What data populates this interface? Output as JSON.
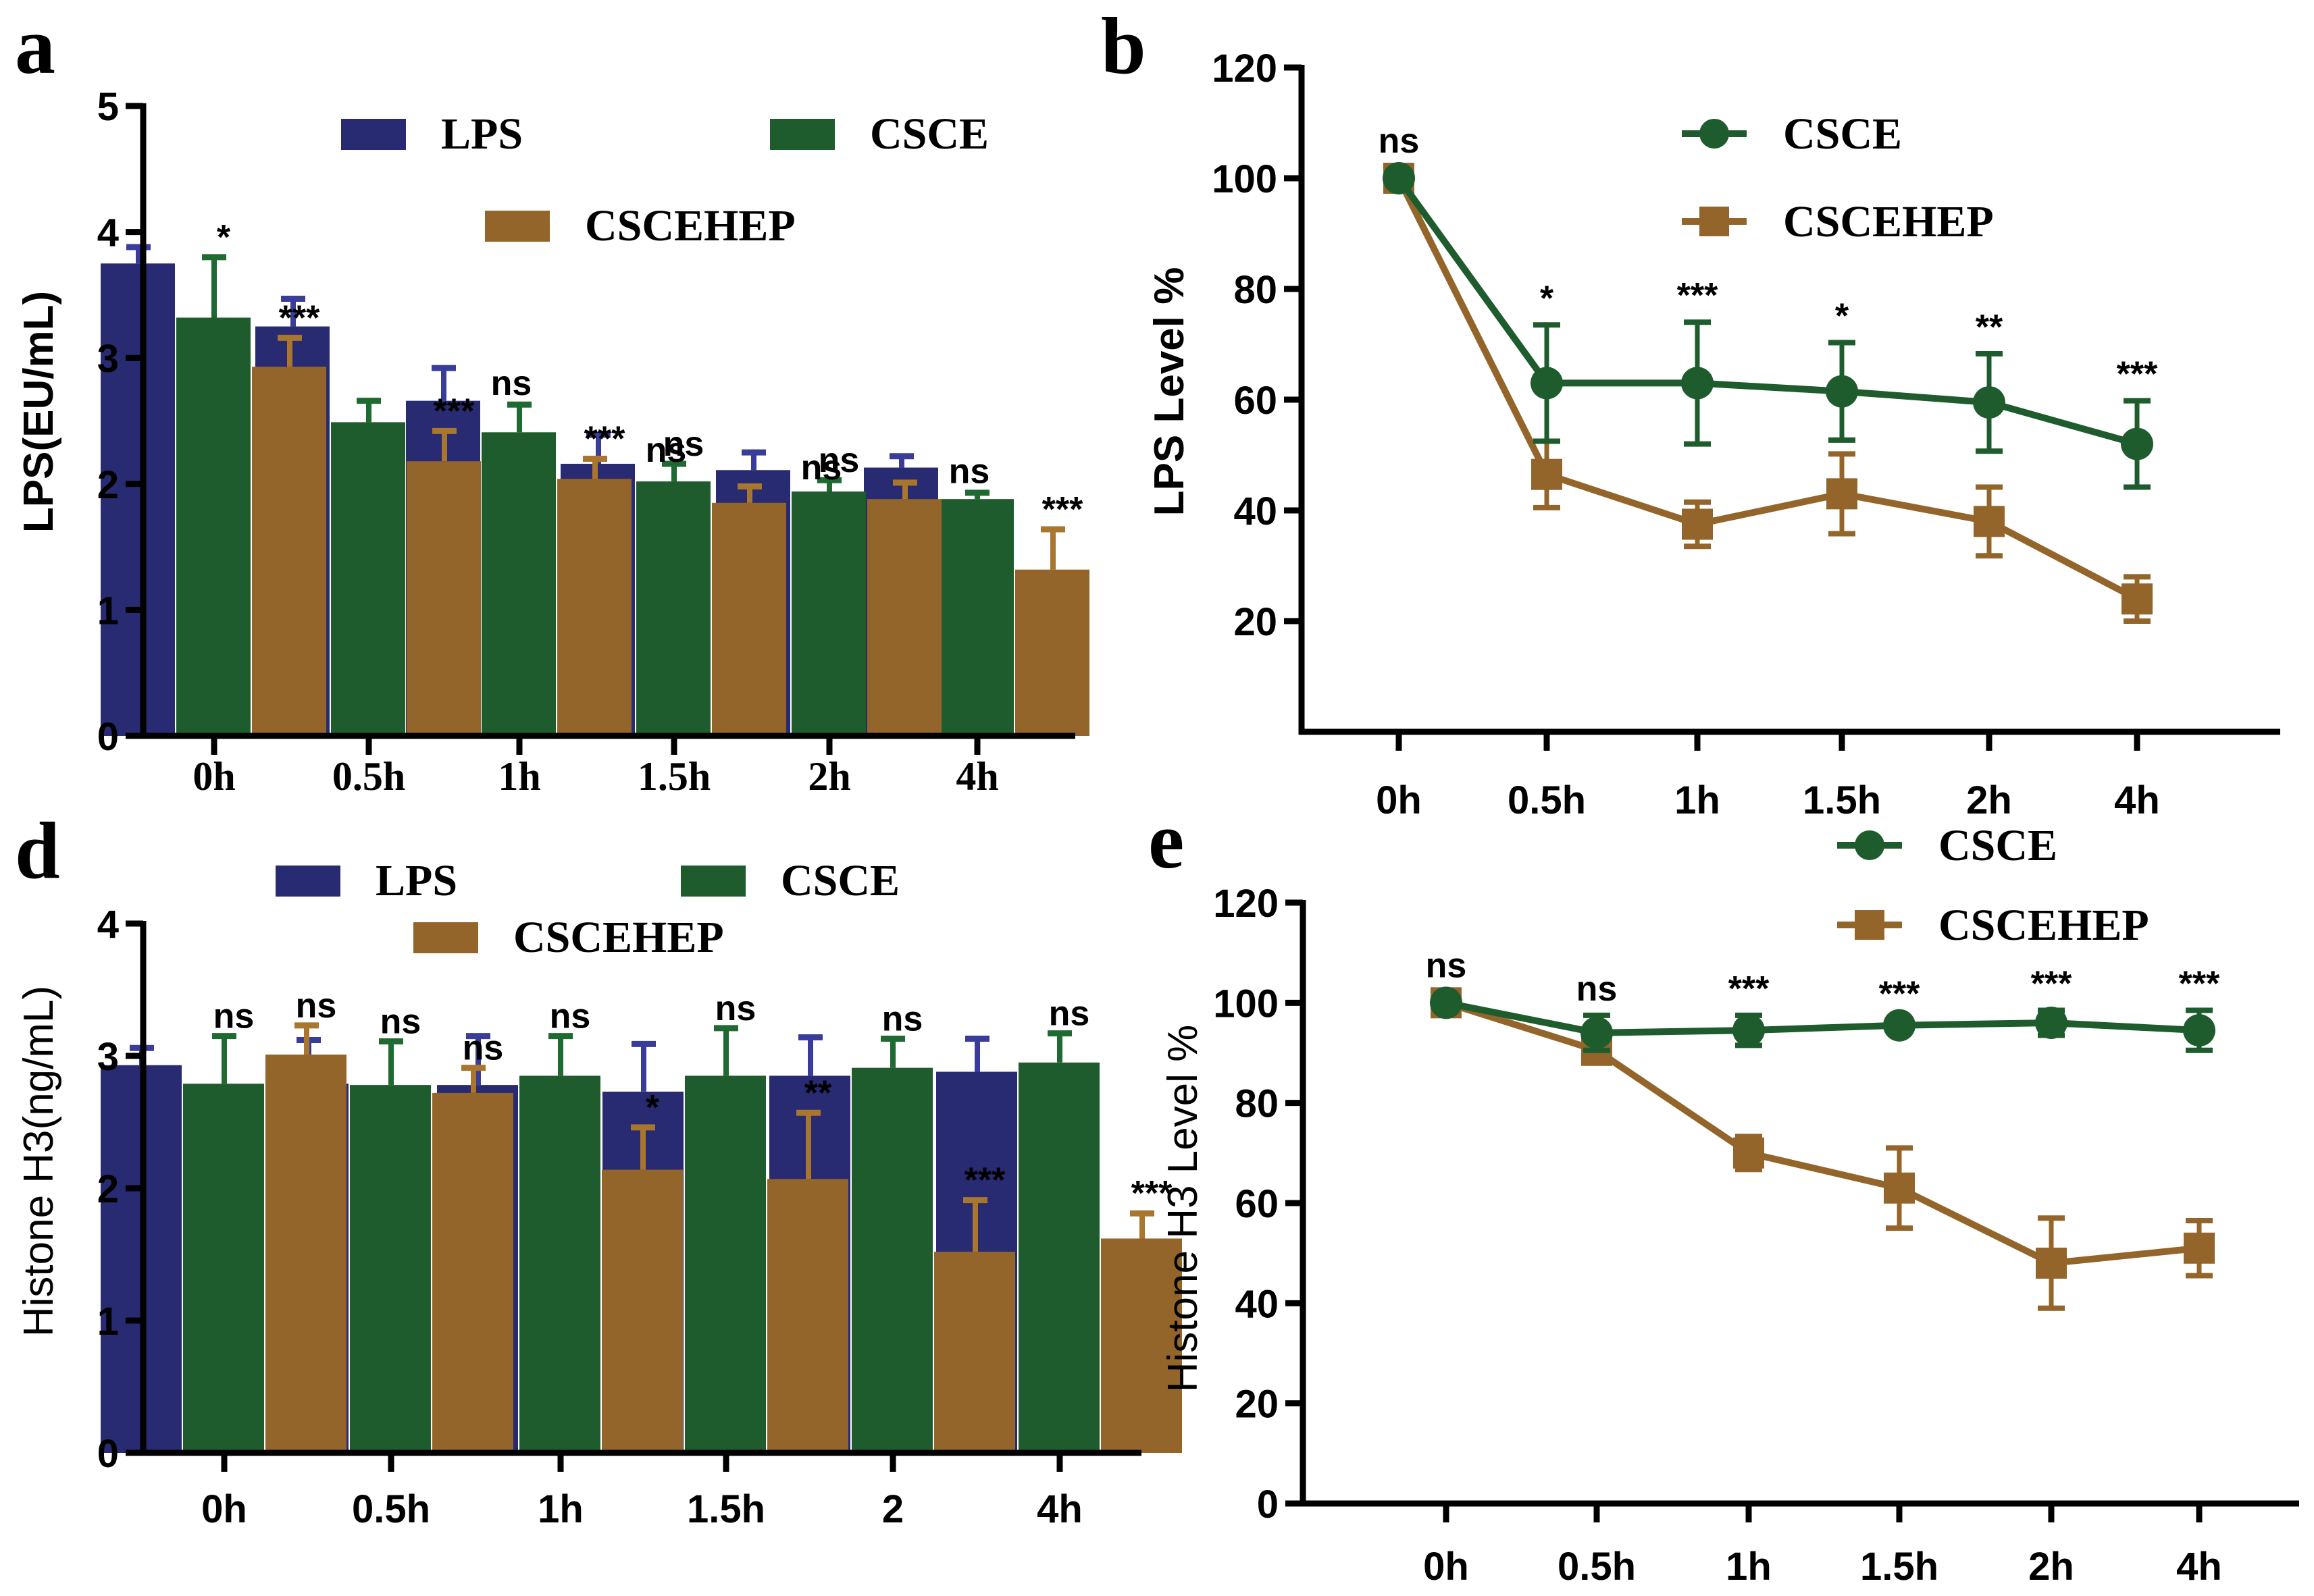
{
  "colors": {
    "LPS": "#282a72",
    "CSCE": "#1e5c2e",
    "CSCEHEP": "#94652a",
    "CSCE_err": "#1e6a30",
    "LPS_err": "#3a3c9a",
    "CSCEHEP_err": "#a8762f"
  },
  "chart_data": [
    {
      "id": "a",
      "panel_label": "a",
      "type": "bar",
      "title": "",
      "xlabel": "",
      "ylabel": "LPS(EU/mL)",
      "ylim": [
        0,
        5
      ],
      "yticks": [
        "0",
        "1",
        "2",
        "3",
        "4",
        "5"
      ],
      "categories": [
        "0h",
        "0.5h",
        "1h",
        "1.5h",
        "2h",
        "4h"
      ],
      "legend": [
        "LPS",
        "CSCE",
        "CSCEHEP"
      ],
      "legend_position": "top",
      "series": [
        {
          "name": "LPS",
          "values": [
            3.75,
            3.25,
            2.66,
            2.16,
            2.11,
            2.13
          ],
          "errors": [
            0.13,
            0.22,
            0.26,
            0.23,
            0.14,
            0.09
          ]
        },
        {
          "name": "CSCE",
          "values": [
            3.32,
            2.49,
            2.41,
            2.02,
            1.94,
            1.88
          ],
          "errors": [
            0.48,
            0.17,
            0.22,
            0.14,
            0.09,
            0.05
          ]
        },
        {
          "name": "CSCEHEP",
          "values": [
            2.93,
            2.18,
            2.04,
            1.85,
            1.88,
            1.32
          ],
          "errors": [
            0.23,
            0.24,
            0.16,
            0.13,
            0.13,
            0.32
          ]
        }
      ],
      "annotations": [
        {
          "series": "CSCE",
          "category": "0h",
          "text": "*"
        },
        {
          "series": "CSCEHEP",
          "category": "0h",
          "text": "***"
        },
        {
          "series": "CSCEHEP",
          "category": "0.5h",
          "text": "***"
        },
        {
          "series": "LPS",
          "category": "1h",
          "text": "ns"
        },
        {
          "series": "CSCEHEP",
          "category": "1h",
          "text": "***"
        },
        {
          "series": "LPS",
          "category": "1.5h",
          "text": "ns"
        },
        {
          "series": "CSCE",
          "category": "1.5h",
          "text": "ns"
        },
        {
          "series": "LPS",
          "category": "2h",
          "text": "ns"
        },
        {
          "series": "CSCE",
          "category": "2h",
          "text": "ns"
        },
        {
          "series": "LPS",
          "category": "4h",
          "text": "ns"
        },
        {
          "series": "CSCEHEP",
          "category": "4h",
          "text": "***"
        }
      ]
    },
    {
      "id": "b",
      "panel_label": "b",
      "type": "line",
      "title": "",
      "xlabel": "",
      "ylabel": "LPS Level %",
      "ylim": [
        0,
        120
      ],
      "yticks": [
        "20",
        "40",
        "60",
        "80",
        "100",
        "120"
      ],
      "x": [
        "0h",
        "0.5h",
        "1h",
        "1.5h",
        "2h",
        "4h"
      ],
      "legend": [
        "CSCE",
        "CSCEHEP"
      ],
      "legend_position": "top-right",
      "series": [
        {
          "name": "CSCE",
          "marker": "circle",
          "values": [
            100,
            63,
            63,
            61.5,
            59.5,
            52
          ],
          "errors": [
            0,
            10.5,
            11,
            8.8,
            8.8,
            7.8
          ]
        },
        {
          "name": "CSCEHEP",
          "marker": "square",
          "values": [
            100,
            46.5,
            37.5,
            43,
            38,
            24
          ],
          "errors": [
            0,
            6,
            4,
            7.2,
            6.2,
            4
          ]
        }
      ],
      "annotations": [
        {
          "category": "0h",
          "text": "ns"
        },
        {
          "category": "0.5h",
          "text": "*"
        },
        {
          "category": "1h",
          "text": "***"
        },
        {
          "category": "1.5h",
          "text": "*"
        },
        {
          "category": "2h",
          "text": "**"
        },
        {
          "category": "4h",
          "text": "***"
        }
      ]
    },
    {
      "id": "d",
      "panel_label": "d",
      "type": "bar",
      "title": "",
      "xlabel": "",
      "ylabel": "Histone H3(ng/mL)",
      "ylim": [
        0,
        4
      ],
      "yticks": [
        "0",
        "1",
        "2",
        "3",
        "4"
      ],
      "categories": [
        "0h",
        "0.5h",
        "1h",
        "1.5h",
        "2",
        "4h"
      ],
      "legend": [
        "LPS",
        "CSCE",
        "CSCEHEP"
      ],
      "legend_position": "top",
      "series": [
        {
          "name": "LPS",
          "values": [
            2.93,
            2.79,
            2.78,
            2.73,
            2.85,
            2.88
          ],
          "errors": [
            0.13,
            0.33,
            0.37,
            0.36,
            0.29,
            0.25
          ]
        },
        {
          "name": "CSCE",
          "values": [
            2.79,
            2.78,
            2.85,
            2.85,
            2.91,
            2.95
          ],
          "errors": [
            0.36,
            0.33,
            0.3,
            0.36,
            0.22,
            0.22
          ]
        },
        {
          "name": "CSCEHEP",
          "values": [
            3.01,
            2.72,
            2.14,
            2.07,
            1.52,
            1.62
          ],
          "errors": [
            0.22,
            0.19,
            0.32,
            0.5,
            0.39,
            0.19
          ]
        }
      ],
      "annotations": [
        {
          "series": "CSCE",
          "category": "0h",
          "text": "ns"
        },
        {
          "series": "CSCEHEP",
          "category": "0h",
          "text": "ns"
        },
        {
          "series": "CSCE",
          "category": "0.5h",
          "text": "ns"
        },
        {
          "series": "CSCEHEP",
          "category": "0.5h",
          "text": "ns"
        },
        {
          "series": "CSCE",
          "category": "1h",
          "text": "ns"
        },
        {
          "series": "CSCEHEP",
          "category": "1h",
          "text": "*"
        },
        {
          "series": "CSCE",
          "category": "1.5h",
          "text": "ns"
        },
        {
          "series": "CSCEHEP",
          "category": "1.5h",
          "text": "**"
        },
        {
          "series": "CSCE",
          "category": "2",
          "text": "ns"
        },
        {
          "series": "CSCEHEP",
          "category": "2",
          "text": "***"
        },
        {
          "series": "CSCE",
          "category": "4h",
          "text": "ns"
        },
        {
          "series": "CSCEHEP",
          "category": "4h",
          "text": "***"
        }
      ]
    },
    {
      "id": "e",
      "panel_label": "e",
      "type": "line",
      "title": "",
      "xlabel": "",
      "ylabel": "Histone H3 Level %",
      "ylim": [
        0,
        120
      ],
      "yticks": [
        "0",
        "20",
        "40",
        "60",
        "80",
        "100",
        "120"
      ],
      "x": [
        "0h",
        "0.5h",
        "1h",
        "1.5h",
        "2h",
        "4h"
      ],
      "legend": [
        "CSCE",
        "CSCEHEP"
      ],
      "legend_position": "top-right",
      "series": [
        {
          "name": "CSCE",
          "marker": "circle",
          "values": [
            100,
            94,
            94.5,
            95.5,
            96,
            94.5
          ],
          "errors": [
            0,
            3.5,
            3,
            1,
            2.5,
            4
          ]
        },
        {
          "name": "CSCEHEP",
          "marker": "square",
          "values": [
            100,
            90.5,
            70,
            63,
            48,
            51
          ],
          "errors": [
            0,
            2,
            3.3,
            8,
            9,
            5.5
          ]
        }
      ],
      "annotations": [
        {
          "category": "0h",
          "text": "ns"
        },
        {
          "category": "0.5h",
          "text": "ns"
        },
        {
          "category": "1h",
          "text": "***"
        },
        {
          "category": "1.5h",
          "text": "***"
        },
        {
          "category": "2h",
          "text": "***"
        },
        {
          "category": "4h",
          "text": "***"
        }
      ]
    }
  ]
}
